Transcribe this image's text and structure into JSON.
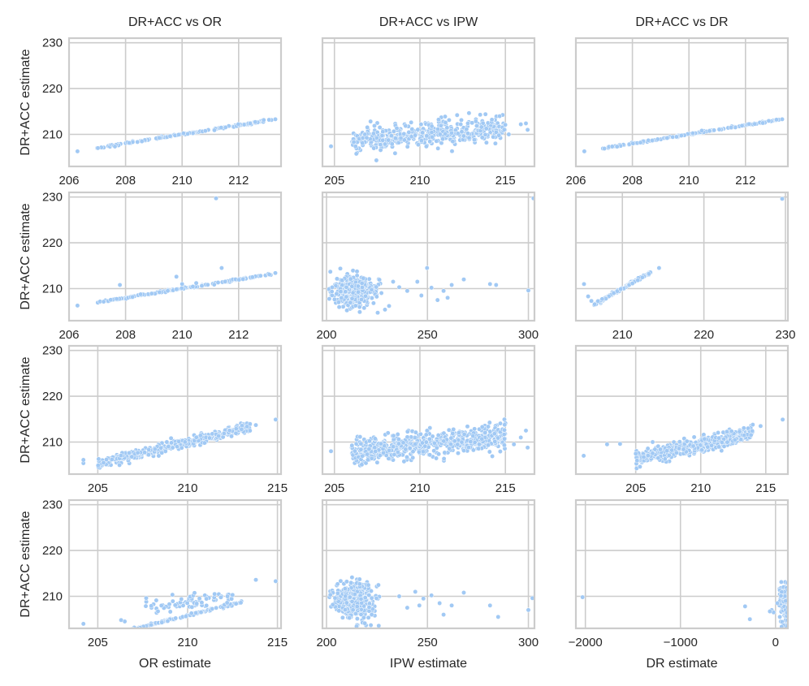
{
  "chart_data": {
    "type": "scatter",
    "figure": "grid of scatter plots, 4 rows x 3 columns, shared y axis across all panels",
    "point_color": "#a1c9f4",
    "grid_color": "#cccccc",
    "y_axis": {
      "label": "DR+ACC estimate",
      "ylim": [
        203,
        231
      ],
      "ticks": [
        210,
        220,
        230
      ]
    },
    "column_titles": [
      "DR+ACC vs OR",
      "DR+ACC vs IPW",
      "DR+ACC vs DR"
    ],
    "column_xlabels": [
      "OR estimate",
      "IPW estimate",
      "DR estimate"
    ],
    "panels": [
      {
        "row": 0,
        "col": 0,
        "xlim": [
          206,
          213.5
        ],
        "xticks": [
          206,
          208,
          210,
          212
        ],
        "gen": {
          "kind": "line",
          "x0": 206.9,
          "x1": 213.2,
          "slope": 1.0,
          "icept": 0.0,
          "yn": 0.1,
          "n": 140
        },
        "fixed": [
          [
            206.3,
            206.3
          ],
          [
            213.3,
            213.3
          ]
        ]
      },
      {
        "row": 0,
        "col": 1,
        "xlim": [
          204.3,
          216.7
        ],
        "xticks": [
          205,
          210,
          215
        ],
        "gen": {
          "kind": "band",
          "x0": 206,
          "x1": 215,
          "center": 210.0,
          "slope": 0.35,
          "spread": 1.3,
          "n": 480
        },
        "fixed": [
          [
            204.8,
            207.4
          ],
          [
            215.9,
            212.2
          ],
          [
            216.2,
            212.4
          ],
          [
            216.3,
            211.0
          ],
          [
            215.2,
            210.0
          ]
        ]
      },
      {
        "row": 0,
        "col": 2,
        "xlim": [
          206,
          213.5
        ],
        "xticks": [
          206,
          208,
          210,
          212
        ],
        "gen": {
          "kind": "line",
          "x0": 206.9,
          "x1": 213.2,
          "slope": 1.0,
          "icept": 0.0,
          "yn": 0.1,
          "n": 140
        },
        "fixed": [
          [
            206.3,
            206.3
          ],
          [
            213.3,
            213.3
          ]
        ]
      },
      {
        "row": 1,
        "col": 0,
        "xlim": [
          206,
          213.5
        ],
        "xticks": [
          206,
          208,
          210,
          212
        ],
        "gen": {
          "kind": "line",
          "x0": 206.9,
          "x1": 213.2,
          "slope": 1.0,
          "icept": 0.0,
          "yn": 0.1,
          "n": 140
        },
        "fixed": [
          [
            206.3,
            206.3
          ],
          [
            211.2,
            229.7
          ],
          [
            211.4,
            214.5
          ],
          [
            209.8,
            212.6
          ],
          [
            207.8,
            210.8
          ],
          [
            210.5,
            211.2
          ],
          [
            209.2,
            209.2
          ],
          [
            210.0,
            211.0
          ],
          [
            213.3,
            213.4
          ]
        ]
      },
      {
        "row": 1,
        "col": 1,
        "xlim": [
          198,
          303
        ],
        "xticks": [
          200,
          250,
          300
        ],
        "gen": {
          "kind": "blob",
          "cx": 214,
          "sx": 5,
          "cy": 209.5,
          "sy": 1.6,
          "xmin": 201,
          "n": 420
        },
        "fixed": [
          [
            302.5,
            229.7
          ],
          [
            249.8,
            214.5
          ],
          [
            245.0,
            211.5
          ],
          [
            252.0,
            210.2
          ],
          [
            258.0,
            209.5
          ],
          [
            262.0,
            210.8
          ],
          [
            268.0,
            212.0
          ],
          [
            281.0,
            211.0
          ],
          [
            284.0,
            210.8
          ],
          [
            300.0,
            209.6
          ],
          [
            255.0,
            207.5
          ],
          [
            240.0,
            209.5
          ],
          [
            236.0,
            210.3
          ],
          [
            247.0,
            208.5
          ],
          [
            260.0,
            208.0
          ],
          [
            233.0,
            211.5
          ]
        ]
      },
      {
        "row": 1,
        "col": 2,
        "xlim": [
          204.3,
          230.3
        ],
        "xticks": [
          210,
          220,
          230
        ],
        "gen": {
          "kind": "line",
          "x0": 206.5,
          "x1": 213.5,
          "slope": 1.0,
          "icept": 0.0,
          "yn": 0.15,
          "n": 120
        },
        "fixed": [
          [
            205.3,
            211.0
          ],
          [
            205.8,
            208.3
          ],
          [
            206.2,
            207.3
          ],
          [
            206.6,
            206.6
          ],
          [
            214.5,
            214.5
          ],
          [
            229.6,
            229.6
          ]
        ]
      },
      {
        "row": 2,
        "col": 0,
        "xlim": [
          203.4,
          215.2
        ],
        "xticks": [
          205,
          210,
          215
        ],
        "gen": {
          "kind": "band",
          "x0": 205,
          "x1": 213.5,
          "center": 209.25,
          "slope": 0.95,
          "spread": 0.55,
          "n": 380
        },
        "fixed": [
          [
            204.2,
            205.4
          ],
          [
            204.2,
            206.1
          ],
          [
            213.8,
            213.7
          ],
          [
            214.9,
            214.9
          ],
          [
            212.7,
            212.9
          ]
        ]
      },
      {
        "row": 2,
        "col": 1,
        "xlim": [
          204.3,
          216.7
        ],
        "xticks": [
          205,
          210,
          215
        ],
        "gen": {
          "kind": "band",
          "x0": 206,
          "x1": 215,
          "center": 209.5,
          "slope": 0.4,
          "spread": 1.4,
          "n": 600
        },
        "fixed": [
          [
            204.8,
            208.0
          ],
          [
            216.3,
            208.8
          ],
          [
            216.2,
            212.5
          ],
          [
            215.9,
            211.0
          ],
          [
            215.5,
            209.5
          ]
        ]
      },
      {
        "row": 2,
        "col": 2,
        "xlim": [
          200.4,
          216.7
        ],
        "xticks": [
          205,
          210,
          215
        ],
        "gen": {
          "kind": "band",
          "x0": 205,
          "x1": 214,
          "center": 209.2,
          "slope": 0.62,
          "spread": 0.8,
          "n": 480
        },
        "fixed": [
          [
            201.0,
            207.0
          ],
          [
            202.8,
            209.5
          ],
          [
            203.8,
            209.6
          ],
          [
            214.0,
            213.8
          ],
          [
            214.6,
            213.5
          ],
          [
            216.3,
            214.9
          ],
          [
            206.3,
            210.0
          ]
        ]
      },
      {
        "row": 3,
        "col": 0,
        "xlim": [
          203.4,
          215.2
        ],
        "xticks": [
          205,
          210,
          215
        ],
        "gen": {
          "kind": "line",
          "x0": 205.0,
          "x1": 213.0,
          "slope": 0.98,
          "icept": 0.0,
          "yn": 0.12,
          "n": 150
        },
        "gen2": {
          "kind": "band",
          "x0": 207.5,
          "x1": 212.5,
          "center": 208.6,
          "slope": 0.5,
          "spread": 0.8,
          "n": 70
        },
        "fixed": [
          [
            204.2,
            204.0
          ],
          [
            213.8,
            213.6
          ],
          [
            214.9,
            213.3
          ],
          [
            206.5,
            204.5
          ],
          [
            206.3,
            204.8
          ],
          [
            211.5,
            210.5
          ],
          [
            212.5,
            210.3
          ]
        ]
      },
      {
        "row": 3,
        "col": 1,
        "xlim": [
          198,
          303
        ],
        "xticks": [
          200,
          250,
          300
        ],
        "gen": {
          "kind": "blob",
          "cx": 214,
          "sx": 5,
          "cy": 209.0,
          "sy": 2.0,
          "xmin": 201,
          "n": 440
        },
        "fixed": [
          [
            302.0,
            209.6
          ],
          [
            300.0,
            207.0
          ],
          [
            285.0,
            205.5
          ],
          [
            281.0,
            208.0
          ],
          [
            268.0,
            210.8
          ],
          [
            258.0,
            206.0
          ],
          [
            252.0,
            210.2
          ],
          [
            262.0,
            208.0
          ],
          [
            248.0,
            209.5
          ],
          [
            240.0,
            207.5
          ],
          [
            236.0,
            210.0
          ],
          [
            246.0,
            208.0
          ],
          [
            256.0,
            208.5
          ],
          [
            244.0,
            211.0
          ]
        ]
      },
      {
        "row": 3,
        "col": 2,
        "xlim": [
          -2100,
          130
        ],
        "xticks": [
          -2000,
          -1000,
          0
        ],
        "gen": {
          "kind": "blob",
          "cx": 100,
          "sx": 25,
          "cy": 208.5,
          "sy": 2.2,
          "xmin": -40,
          "n": 200
        },
        "fixed": [
          [
            -2030,
            209.8
          ],
          [
            -320,
            207.8
          ],
          [
            -270,
            205.0
          ],
          [
            -40,
            207.0
          ],
          [
            -20,
            206.5
          ],
          [
            20,
            208.5
          ],
          [
            -60,
            206.7
          ]
        ]
      }
    ]
  }
}
